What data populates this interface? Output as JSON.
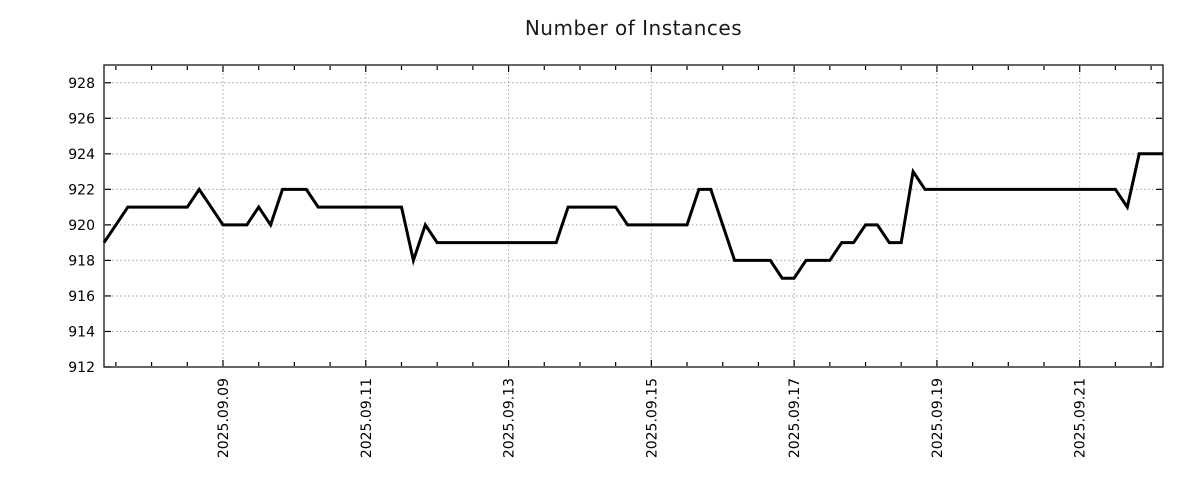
{
  "chart_data": {
    "type": "line",
    "title": "Number of Instances",
    "series_name": "instances",
    "start_time": "2025-09-07 08:00",
    "interval_hours": 4,
    "xlim": [
      "2025-09-07 08:00",
      "2025-09-22 04:00"
    ],
    "ylim": [
      912,
      929
    ],
    "grid": true,
    "legend": "none",
    "line_color": "#000000",
    "line_width": 3,
    "grid_color": "#a6a6a6",
    "axis_color": "#000000",
    "background": "#ffffff",
    "y_ticks": [
      912,
      914,
      916,
      918,
      920,
      922,
      924,
      926,
      928
    ],
    "x_tick_labels": [
      "2025.09.09",
      "2025.09.11",
      "2025.09.13",
      "2025.09.15",
      "2025.09.17",
      "2025.09.19",
      "2025.09.21"
    ],
    "x_tick_indices": [
      10,
      22,
      34,
      46,
      58,
      70,
      82
    ],
    "x_minor_tick_start": 1,
    "x_minor_tick_step": 3,
    "values": [
      919,
      920,
      921,
      921,
      921,
      921,
      921,
      921,
      922,
      921,
      920,
      920,
      920,
      921,
      920,
      922,
      922,
      922,
      921,
      921,
      921,
      921,
      921,
      921,
      921,
      921,
      918,
      920,
      919,
      919,
      919,
      919,
      919,
      919,
      919,
      919,
      919,
      919,
      919,
      921,
      921,
      921,
      921,
      921,
      920,
      920,
      920,
      920,
      920,
      920,
      922,
      922,
      920,
      918,
      918,
      918,
      918,
      917,
      917,
      918,
      918,
      918,
      919,
      919,
      920,
      920,
      919,
      919,
      923,
      922,
      922,
      922,
      922,
      922,
      922,
      922,
      922,
      922,
      922,
      922,
      922,
      922,
      922,
      922,
      922,
      922,
      921,
      924,
      924,
      924
    ]
  }
}
